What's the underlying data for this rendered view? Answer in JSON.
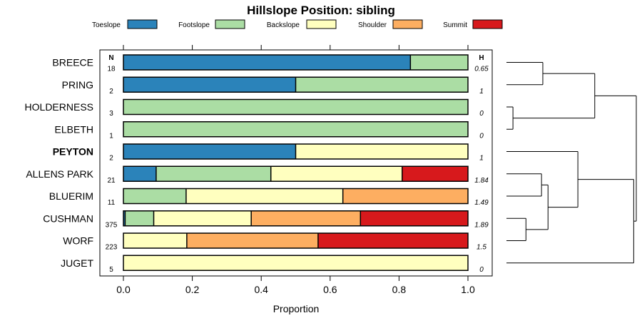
{
  "chart_data": {
    "type": "stacked-bar",
    "title": "Hillslope Position: sibling",
    "xlabel": "Proportion",
    "xlim": [
      0,
      1
    ],
    "x_ticks": [
      "0.0",
      "0.2",
      "0.4",
      "0.6",
      "0.8",
      "1.0"
    ],
    "n_header": "N",
    "h_header": "H",
    "categories": [
      "Toeslope",
      "Footslope",
      "Backslope",
      "Shoulder",
      "Summit"
    ],
    "colors": [
      "#2B83BA",
      "#ABDDA4",
      "#FFFFBF",
      "#FDAE61",
      "#D7191C"
    ],
    "rows": [
      {
        "label": "BREECE",
        "bold": false,
        "n": "18",
        "h": "0.65",
        "values": [
          0.833,
          0.167,
          0,
          0,
          0
        ]
      },
      {
        "label": "PRING",
        "bold": false,
        "n": "2",
        "h": "1",
        "values": [
          0.5,
          0.5,
          0,
          0,
          0
        ]
      },
      {
        "label": "HOLDERNESS",
        "bold": false,
        "n": "3",
        "h": "0",
        "values": [
          0,
          1.0,
          0,
          0,
          0
        ]
      },
      {
        "label": "ELBETH",
        "bold": false,
        "n": "1",
        "h": "0",
        "values": [
          0,
          1.0,
          0,
          0,
          0
        ]
      },
      {
        "label": "PEYTON",
        "bold": true,
        "n": "2",
        "h": "1",
        "values": [
          0.5,
          0,
          0.5,
          0,
          0
        ]
      },
      {
        "label": "ALLENS PARK",
        "bold": false,
        "n": "21",
        "h": "1.84",
        "values": [
          0.095,
          0.333,
          0.381,
          0,
          0.191
        ]
      },
      {
        "label": "BLUERIM",
        "bold": false,
        "n": "11",
        "h": "1.49",
        "values": [
          0,
          0.182,
          0.455,
          0.363,
          0
        ]
      },
      {
        "label": "CUSHMAN",
        "bold": false,
        "n": "375",
        "h": "1.89",
        "values": [
          0.005,
          0.083,
          0.283,
          0.317,
          0.312
        ]
      },
      {
        "label": "WORF",
        "bold": false,
        "n": "223",
        "h": "1.5",
        "values": [
          0,
          0,
          0.184,
          0.381,
          0.435
        ]
      },
      {
        "label": "JUGET",
        "bold": false,
        "n": "5",
        "h": "0",
        "values": [
          0,
          0,
          1.0,
          0,
          0
        ]
      }
    ],
    "dendrogram": {
      "merges": [
        [
          0,
          1,
          0.28
        ],
        [
          2,
          3,
          0.05
        ],
        [
          10,
          11,
          0.68
        ],
        [
          5,
          6,
          0.27
        ],
        [
          7,
          8,
          0.15
        ],
        [
          13,
          14,
          0.32
        ],
        [
          4,
          15,
          0.55
        ],
        [
          16,
          9,
          0.98
        ],
        [
          12,
          17,
          1.0
        ]
      ]
    }
  }
}
